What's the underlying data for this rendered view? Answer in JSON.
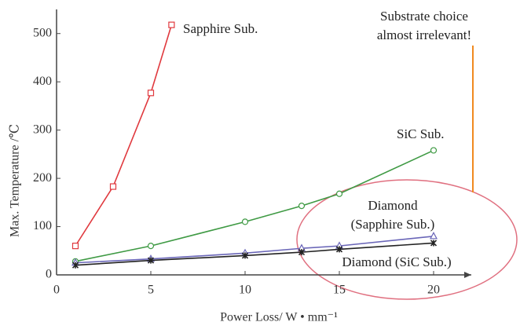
{
  "chart_data": {
    "type": "line",
    "x_label": "Power Loss/ W • mm⁻¹",
    "y_label": "Max. Temperature /℃",
    "xlim": [
      0,
      22
    ],
    "xticks": [
      0,
      5,
      10,
      15,
      20
    ],
    "ylim": [
      0,
      550
    ],
    "yticks": [
      0,
      100,
      200,
      300,
      400,
      500
    ],
    "grid": false,
    "series": [
      {
        "name": "Sapphire Sub.",
        "color": "#e0393e",
        "marker": "square",
        "x": [
          1,
          3,
          5,
          6.1
        ],
        "values": [
          60,
          183,
          377,
          518
        ]
      },
      {
        "name": "SiC Sub.",
        "color": "#3f9a44",
        "marker": "circle",
        "x": [
          1,
          5,
          10,
          13,
          15,
          20
        ],
        "values": [
          28,
          60,
          110,
          143,
          168,
          258
        ]
      },
      {
        "name": "Diamond (Sapphire Sub.)",
        "color": "#6a66b8",
        "marker": "triangle",
        "x": [
          1,
          5,
          10,
          13,
          15,
          20
        ],
        "values": [
          25,
          33,
          45,
          55,
          60,
          80
        ]
      },
      {
        "name": "Diamond (SiC Sub.)",
        "color": "#222222",
        "marker": "star",
        "x": [
          1,
          5,
          10,
          13,
          15,
          20
        ],
        "values": [
          20,
          30,
          40,
          47,
          53,
          66
        ]
      }
    ],
    "annotations": [
      [
        "Sapphire Sub."
      ],
      [
        "SiC Sub."
      ],
      [
        "Diamond",
        "(Sapphire Sub.)"
      ],
      [
        "Diamond (SiC Sub.)"
      ],
      [
        "Substrate choice",
        "almost irrelevant!"
      ]
    ]
  }
}
